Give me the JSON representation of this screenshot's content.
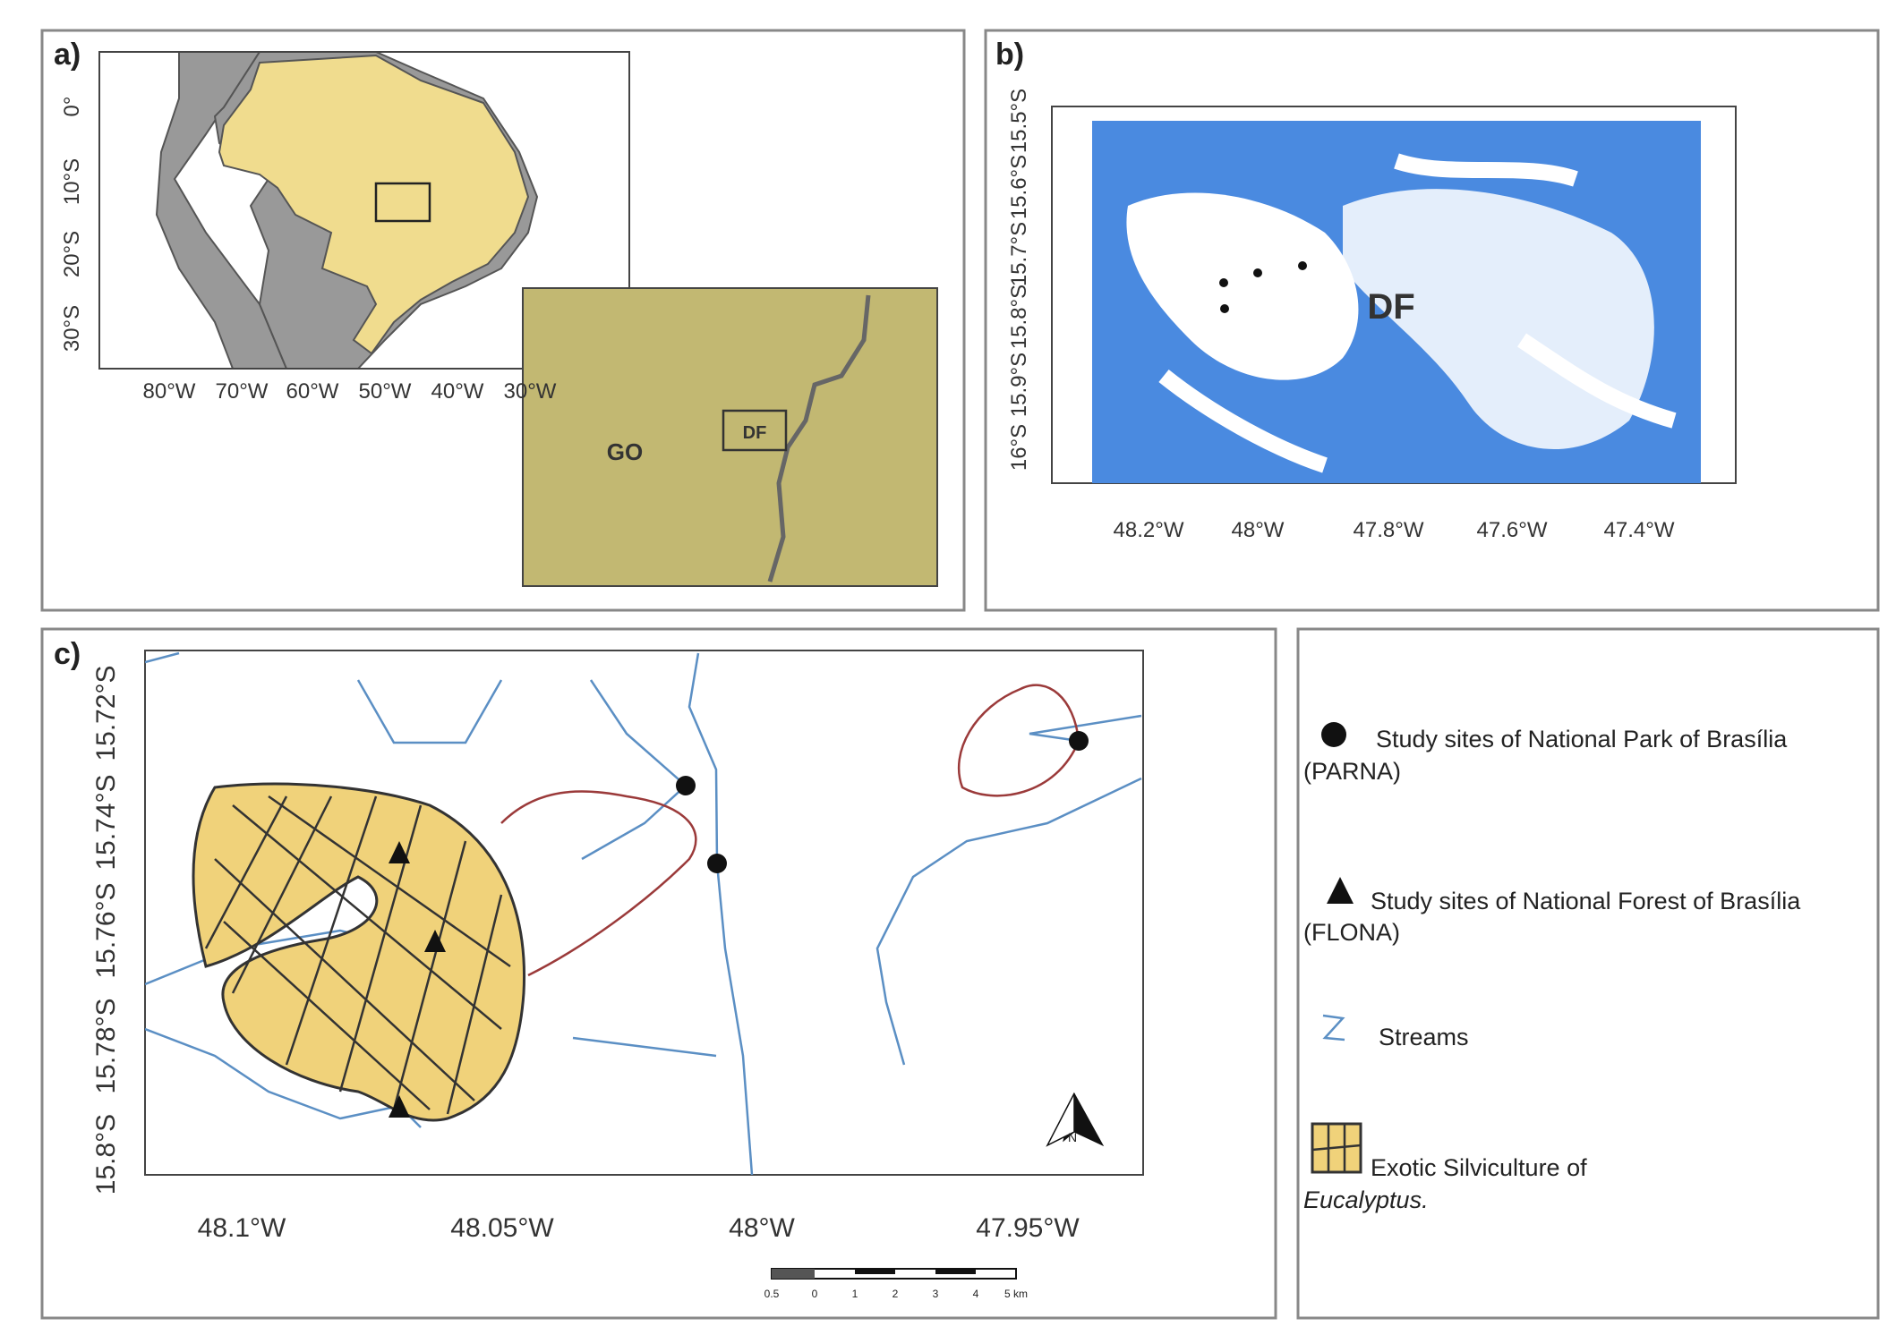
{
  "panels": {
    "a": {
      "label": "a)",
      "lat_ticks": [
        "0°",
        "10°S",
        "20°S",
        "30°S"
      ],
      "lon_ticks": [
        "80°W",
        "70°W",
        "60°W",
        "50°W",
        "40°W",
        "30°W"
      ],
      "inset_labels": [
        "GO",
        "DF"
      ]
    },
    "b": {
      "label": "b)",
      "lat_ticks": [
        "16°S",
        "15.9°S",
        "15.8°S",
        "15.7°S",
        "15.6°S",
        "15.5°S"
      ],
      "lon_ticks": [
        "48.2°W",
        "48°W",
        "47.8°W",
        "47.6°W",
        "47.4°W"
      ],
      "region_label": "DF"
    },
    "c": {
      "label": "c)",
      "lat_ticks": [
        "15.8°S",
        "15.78°S",
        "15.76°S",
        "15.74°S",
        "15.72°S"
      ],
      "lon_ticks": [
        "48.1°W",
        "48.05°W",
        "48°W",
        "47.95°W"
      ],
      "north": "N",
      "scale_labels": [
        "0.5",
        "0",
        "1",
        "2",
        "3",
        "4",
        "5 km"
      ]
    }
  },
  "legend": {
    "items": [
      {
        "label": "Study sites of National Park of Brasília",
        "label2": "(PARNA)"
      },
      {
        "label": "Study sites of National Forest of Brasília",
        "label2": "(FLONA)"
      },
      {
        "label": "Streams"
      },
      {
        "label": "Exotic Silviculture of",
        "label2": "Eucalyptus."
      }
    ]
  }
}
